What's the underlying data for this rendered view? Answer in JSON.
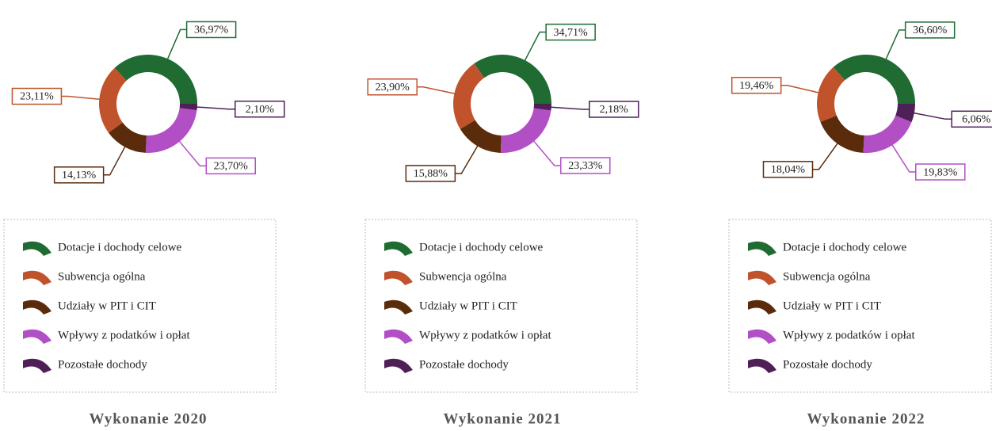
{
  "chart_data": [
    {
      "type": "pie",
      "donut": true,
      "title": "Wykonanie 2020",
      "categories": [
        "Dotacje i dochody celowe",
        "Subwencja ogólna",
        "Udziały w PIT i CIT",
        "Wpływy z podatków i opłat",
        "Pozostałe dochody"
      ],
      "values": [
        36.97,
        23.11,
        14.13,
        23.7,
        2.1
      ],
      "value_labels": [
        "36,97%",
        "23,11%",
        "14,13%",
        "23,70%",
        "2,10%"
      ],
      "colors": [
        "#1f6b32",
        "#c0532b",
        "#5b2c0c",
        "#b24fc4",
        "#4f1f57"
      ]
    },
    {
      "type": "pie",
      "donut": true,
      "title": "Wykonanie 2021",
      "categories": [
        "Dotacje i dochody celowe",
        "Subwencja ogólna",
        "Udziały w PIT i CIT",
        "Wpływy z podatków i opłat",
        "Pozostałe dochody"
      ],
      "values": [
        34.71,
        23.9,
        15.88,
        23.33,
        2.18
      ],
      "value_labels": [
        "34,71%",
        "23,90%",
        "15,88%",
        "23,33%",
        "2,18%"
      ],
      "colors": [
        "#1f6b32",
        "#c0532b",
        "#5b2c0c",
        "#b24fc4",
        "#4f1f57"
      ]
    },
    {
      "type": "pie",
      "donut": true,
      "title": "Wykonanie 2022",
      "categories": [
        "Dotacje i dochody celowe",
        "Subwencja ogólna",
        "Udziały w PIT i CIT",
        "Wpływy z podatków i opłat",
        "Pozostałe dochody"
      ],
      "values": [
        36.6,
        19.46,
        18.04,
        19.83,
        6.06
      ],
      "value_labels": [
        "36,60%",
        "19,46%",
        "18,04%",
        "19,83%",
        "6,06%"
      ],
      "colors": [
        "#1f6b32",
        "#c0532b",
        "#5b2c0c",
        "#b24fc4",
        "#4f1f57"
      ]
    }
  ]
}
